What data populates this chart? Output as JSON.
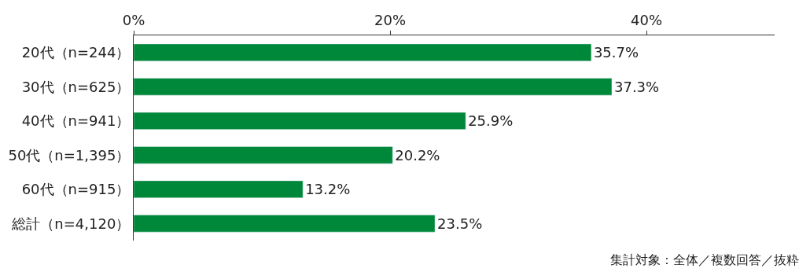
{
  "chart_data": {
    "type": "bar",
    "orientation": "horizontal",
    "categories": [
      "20代（n=244）",
      "30代（n=625）",
      "40代（n=941）",
      "50代（n=1,395）",
      "60代（n=915）",
      "総計（n=4,120）"
    ],
    "values": [
      35.7,
      37.3,
      25.9,
      20.2,
      13.2,
      23.5
    ],
    "value_labels": [
      "35.7%",
      "37.3%",
      "25.9%",
      "20.2%",
      "13.2%",
      "23.5%"
    ],
    "color": "#00883a",
    "xlim": [
      0,
      50
    ],
    "xticks": [
      {
        "value": 0,
        "label": "0%"
      },
      {
        "value": 20,
        "label": "20%"
      },
      {
        "value": 40,
        "label": "40%"
      }
    ],
    "annotations": [
      "集計対象：全体／複数回答／抜粋"
    ]
  }
}
